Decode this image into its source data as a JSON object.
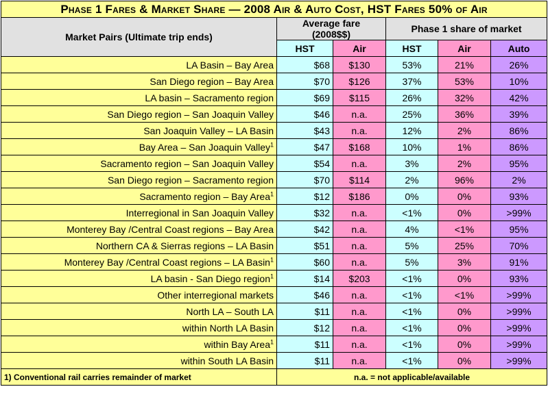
{
  "title": "Phase 1 Fares & Market Share — 2008 Air & Auto Cost, HST Fares 50% of Air",
  "headers": {
    "market": "Market Pairs (Ultimate trip ends)",
    "avg_fare": "Average fare",
    "avg_fare_unit": "(2008$$)",
    "share": "Phase 1 share of market",
    "hst_fare": "HST",
    "air_fare": "Air",
    "hst_share": "HST",
    "air_share": "Air",
    "auto_share": "Auto"
  },
  "rows": [
    {
      "market": "LA  Basin – Bay Area",
      "sup": "",
      "hst_fare": "$68",
      "air_fare": "$130",
      "hst_share": "53%",
      "air_share": "21%",
      "auto_share": "26%"
    },
    {
      "market": "San Diego region – Bay Area",
      "sup": "",
      "hst_fare": "$70",
      "air_fare": "$126",
      "hst_share": "37%",
      "air_share": "53%",
      "auto_share": "10%"
    },
    {
      "market": "LA basin – Sacramento region",
      "sup": "",
      "hst_fare": "$69",
      "air_fare": "$115",
      "hst_share": "26%",
      "air_share": "32%",
      "auto_share": "42%"
    },
    {
      "market": "San Diego  region  – San Joaquin Valley",
      "sup": "",
      "hst_fare": "$46",
      "air_fare": "n.a.",
      "hst_share": "25%",
      "air_share": "36%",
      "auto_share": "39%"
    },
    {
      "market": "San Joaquin Valley – LA Basin",
      "sup": "",
      "hst_fare": "$43",
      "air_fare": "n.a.",
      "hst_share": "12%",
      "air_share": "2%",
      "auto_share": "86%"
    },
    {
      "market": "Bay Area – San Joaquin Valley",
      "sup": "1",
      "hst_fare": "$47",
      "air_fare": "$168",
      "hst_share": "10%",
      "air_share": "1%",
      "auto_share": "86%"
    },
    {
      "market": "Sacramento region – San Joaquin Valley",
      "sup": "",
      "hst_fare": "$54",
      "air_fare": "n.a.",
      "hst_share": "3%",
      "air_share": "2%",
      "auto_share": "95%"
    },
    {
      "market": "San Diego region – Sacramento region",
      "sup": "",
      "hst_fare": "$70",
      "air_fare": "$114",
      "hst_share": "2%",
      "air_share": "96%",
      "auto_share": "2%"
    },
    {
      "market": "Sacramento region – Bay Area",
      "sup": "1",
      "hst_fare": "$12",
      "air_fare": "$186",
      "hst_share": "0%",
      "air_share": "0%",
      "auto_share": "93%"
    },
    {
      "market": "Interregional in San Joaquin Valley",
      "sup": "",
      "hst_fare": "$32",
      "air_fare": "n.a.",
      "hst_share": "<1%",
      "air_share": "0%",
      "auto_share": ">99%"
    },
    {
      "market": "Monterey Bay /Central Coast regions – Bay Area",
      "sup": "",
      "hst_fare": "$42",
      "air_fare": "n.a.",
      "hst_share": "4%",
      "air_share": "<1%",
      "auto_share": "95%"
    },
    {
      "market": "Northern CA & Sierras regions – LA Basin",
      "sup": "",
      "hst_fare": "$51",
      "air_fare": "n.a.",
      "hst_share": "5%",
      "air_share": "25%",
      "auto_share": "70%"
    },
    {
      "market": "Monterey Bay /Central Coast regions  – LA Basin",
      "sup": "1",
      "hst_fare": "$60",
      "air_fare": "n.a.",
      "hst_share": "5%",
      "air_share": "3%",
      "auto_share": "91%"
    },
    {
      "market": "LA basin - San Diego region",
      "sup": "1",
      "hst_fare": "$14",
      "air_fare": "$203",
      "hst_share": "<1%",
      "air_share": "0%",
      "auto_share": "93%"
    },
    {
      "market": "Other interregional markets",
      "sup": "",
      "hst_fare": "$46",
      "air_fare": "n.a.",
      "hst_share": "<1%",
      "air_share": "<1%",
      "auto_share": ">99%"
    },
    {
      "market": "North LA – South LA",
      "sup": "",
      "hst_fare": "$11",
      "air_fare": "n.a.",
      "hst_share": "<1%",
      "air_share": "0%",
      "auto_share": ">99%"
    },
    {
      "market": "within North LA Basin",
      "sup": "",
      "hst_fare": "$12",
      "air_fare": "n.a.",
      "hst_share": "<1%",
      "air_share": "0%",
      "auto_share": ">99%"
    },
    {
      "market": "within Bay Area",
      "sup": "1",
      "hst_fare": "$11",
      "air_fare": "n.a.",
      "hst_share": "<1%",
      "air_share": "0%",
      "auto_share": ">99%"
    },
    {
      "market": "within South LA Basin",
      "sup": "",
      "hst_fare": "$11",
      "air_fare": "n.a.",
      "hst_share": "<1%",
      "air_share": "0%",
      "auto_share": ">99%"
    }
  ],
  "footnote": "1) Conventional rail  carries remainder of market",
  "na_note": "n.a. = not applicable/available",
  "colors": {
    "yellow": "#ffff99",
    "cyan": "#ccffff",
    "pink": "#ff99cc",
    "violet": "#cc99ff",
    "header_gray": "#e1e1e1"
  }
}
